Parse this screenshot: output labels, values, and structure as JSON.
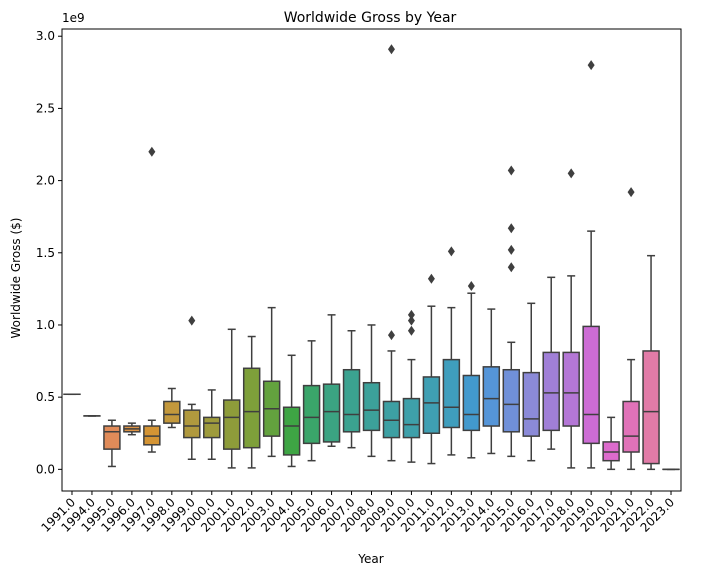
{
  "chart_data": {
    "type": "box",
    "title": "Worldwide Gross by Year",
    "xlabel": "Year",
    "ylabel": "Worldwide Gross ($)",
    "y_offset_label": "1e9",
    "y_scale_factor": 1000000000,
    "ylim": [
      -0.15,
      3.05
    ],
    "yticks": [
      0.0,
      0.5,
      1.0,
      1.5,
      2.0,
      2.5,
      3.0
    ],
    "ytick_labels": [
      "0.0",
      "0.5",
      "1.0",
      "1.5",
      "2.0",
      "2.5",
      "3.0"
    ],
    "grid": false,
    "legend": "none",
    "categories": [
      "1991.0",
      "1994.0",
      "1995.0",
      "1996.0",
      "1997.0",
      "1998.0",
      "1999.0",
      "2000.0",
      "2001.0",
      "2002.0",
      "2003.0",
      "2004.0",
      "2005.0",
      "2006.0",
      "2007.0",
      "2008.0",
      "2009.0",
      "2010.0",
      "2011.0",
      "2012.0",
      "2013.0",
      "2014.0",
      "2015.0",
      "2016.0",
      "2017.0",
      "2018.0",
      "2019.0",
      "2020.0",
      "2021.0",
      "2022.0",
      "2023.0"
    ],
    "boxes": [
      {
        "year": "1991.0",
        "whislo": 0.52,
        "q1": 0.52,
        "med": 0.52,
        "q3": 0.52,
        "whishi": 0.52,
        "fliers": [],
        "color": "#e48884"
      },
      {
        "year": "1994.0",
        "whislo": 0.37,
        "q1": 0.37,
        "med": 0.37,
        "q3": 0.37,
        "whishi": 0.37,
        "fliers": [],
        "color": "#e08c68"
      },
      {
        "year": "1995.0",
        "whislo": 0.02,
        "q1": 0.14,
        "med": 0.26,
        "q3": 0.3,
        "whishi": 0.34,
        "fliers": [],
        "color": "#e08b59"
      },
      {
        "year": "1996.0",
        "whislo": 0.24,
        "q1": 0.26,
        "med": 0.28,
        "q3": 0.3,
        "whishi": 0.32,
        "fliers": [],
        "color": "#dc9244"
      },
      {
        "year": "1997.0",
        "whislo": 0.12,
        "q1": 0.17,
        "med": 0.23,
        "q3": 0.3,
        "whishi": 0.34,
        "fliers": [
          2.2
        ],
        "color": "#d49434"
      },
      {
        "year": "1998.0",
        "whislo": 0.29,
        "q1": 0.32,
        "med": 0.38,
        "q3": 0.47,
        "whishi": 0.56,
        "fliers": [],
        "color": "#c3983c"
      },
      {
        "year": "1999.0",
        "whislo": 0.07,
        "q1": 0.22,
        "med": 0.3,
        "q3": 0.41,
        "whishi": 0.45,
        "fliers": [
          1.03
        ],
        "color": "#b0993e"
      },
      {
        "year": "2000.0",
        "whislo": 0.07,
        "q1": 0.22,
        "med": 0.32,
        "q3": 0.36,
        "whishi": 0.55,
        "fliers": [],
        "color": "#9e9b3c"
      },
      {
        "year": "2001.0",
        "whislo": 0.01,
        "q1": 0.14,
        "med": 0.36,
        "q3": 0.48,
        "whishi": 0.97,
        "fliers": [],
        "color": "#8e9c3a"
      },
      {
        "year": "2002.0",
        "whislo": 0.01,
        "q1": 0.15,
        "med": 0.4,
        "q3": 0.7,
        "whishi": 0.92,
        "fliers": [],
        "color": "#7ea03a"
      },
      {
        "year": "2003.0",
        "whislo": 0.09,
        "q1": 0.23,
        "med": 0.42,
        "q3": 0.61,
        "whishi": 1.12,
        "fliers": [],
        "color": "#63a23e"
      },
      {
        "year": "2004.0",
        "whislo": 0.02,
        "q1": 0.1,
        "med": 0.3,
        "q3": 0.43,
        "whishi": 0.79,
        "fliers": [],
        "color": "#3ea544"
      },
      {
        "year": "2005.0",
        "whislo": 0.06,
        "q1": 0.18,
        "med": 0.36,
        "q3": 0.58,
        "whishi": 0.89,
        "fliers": [],
        "color": "#3aa56a"
      },
      {
        "year": "2006.0",
        "whislo": 0.16,
        "q1": 0.19,
        "med": 0.4,
        "q3": 0.59,
        "whishi": 1.07,
        "fliers": [],
        "color": "#3ba382"
      },
      {
        "year": "2007.0",
        "whislo": 0.15,
        "q1": 0.26,
        "med": 0.38,
        "q3": 0.69,
        "whishi": 0.96,
        "fliers": [],
        "color": "#3ba290"
      },
      {
        "year": "2008.0",
        "whislo": 0.09,
        "q1": 0.27,
        "med": 0.41,
        "q3": 0.6,
        "whishi": 1.0,
        "fliers": [],
        "color": "#3ca19a"
      },
      {
        "year": "2009.0",
        "whislo": 0.06,
        "q1": 0.22,
        "med": 0.34,
        "q3": 0.47,
        "whishi": 0.82,
        "fliers": [
          0.93,
          2.91
        ],
        "color": "#3da0a3"
      },
      {
        "year": "2010.0",
        "whislo": 0.05,
        "q1": 0.22,
        "med": 0.31,
        "q3": 0.49,
        "whishi": 0.76,
        "fliers": [
          0.96,
          1.03,
          1.07
        ],
        "color": "#3ea0aa"
      },
      {
        "year": "2011.0",
        "whislo": 0.04,
        "q1": 0.25,
        "med": 0.46,
        "q3": 0.64,
        "whishi": 1.13,
        "fliers": [
          1.32
        ],
        "color": "#3f9fb3"
      },
      {
        "year": "2012.0",
        "whislo": 0.1,
        "q1": 0.29,
        "med": 0.43,
        "q3": 0.76,
        "whishi": 1.12,
        "fliers": [
          1.51
        ],
        "color": "#3f9ebd"
      },
      {
        "year": "2013.0",
        "whislo": 0.08,
        "q1": 0.27,
        "med": 0.38,
        "q3": 0.65,
        "whishi": 1.22,
        "fliers": [
          1.27
        ],
        "color": "#4299cd"
      },
      {
        "year": "2014.0",
        "whislo": 0.11,
        "q1": 0.3,
        "med": 0.49,
        "q3": 0.71,
        "whishi": 1.11,
        "fliers": [],
        "color": "#5595d8"
      },
      {
        "year": "2015.0",
        "whislo": 0.09,
        "q1": 0.26,
        "med": 0.45,
        "q3": 0.69,
        "whishi": 0.88,
        "fliers": [
          1.4,
          1.52,
          1.67,
          2.07
        ],
        "color": "#7090d8"
      },
      {
        "year": "2016.0",
        "whislo": 0.06,
        "q1": 0.23,
        "med": 0.35,
        "q3": 0.67,
        "whishi": 1.15,
        "fliers": [],
        "color": "#8b8ad8"
      },
      {
        "year": "2017.0",
        "whislo": 0.14,
        "q1": 0.27,
        "med": 0.53,
        "q3": 0.81,
        "whishi": 1.33,
        "fliers": [],
        "color": "#a07fd7"
      },
      {
        "year": "2018.0",
        "whislo": 0.01,
        "q1": 0.3,
        "med": 0.53,
        "q3": 0.81,
        "whishi": 1.34,
        "fliers": [
          2.05
        ],
        "color": "#b477d6"
      },
      {
        "year": "2019.0",
        "whislo": 0.01,
        "q1": 0.18,
        "med": 0.38,
        "q3": 0.99,
        "whishi": 1.65,
        "fliers": [
          2.8
        ],
        "color": "#cc6cd4"
      },
      {
        "year": "2020.0",
        "whislo": 0.0,
        "q1": 0.06,
        "med": 0.12,
        "q3": 0.19,
        "whishi": 0.36,
        "fliers": [],
        "color": "#dc6bcc"
      },
      {
        "year": "2021.0",
        "whislo": 0.0,
        "q1": 0.12,
        "med": 0.23,
        "q3": 0.47,
        "whishi": 0.76,
        "fliers": [
          1.92
        ],
        "color": "#e072b8"
      },
      {
        "year": "2022.0",
        "whislo": 0.0,
        "q1": 0.04,
        "med": 0.4,
        "q3": 0.82,
        "whishi": 1.48,
        "fliers": [],
        "color": "#e17ba7"
      },
      {
        "year": "2023.0",
        "whislo": 0.0,
        "q1": 0.0,
        "med": 0.0,
        "q3": 0.0,
        "whishi": 0.0,
        "fliers": [],
        "color": "#e3839b"
      }
    ]
  }
}
